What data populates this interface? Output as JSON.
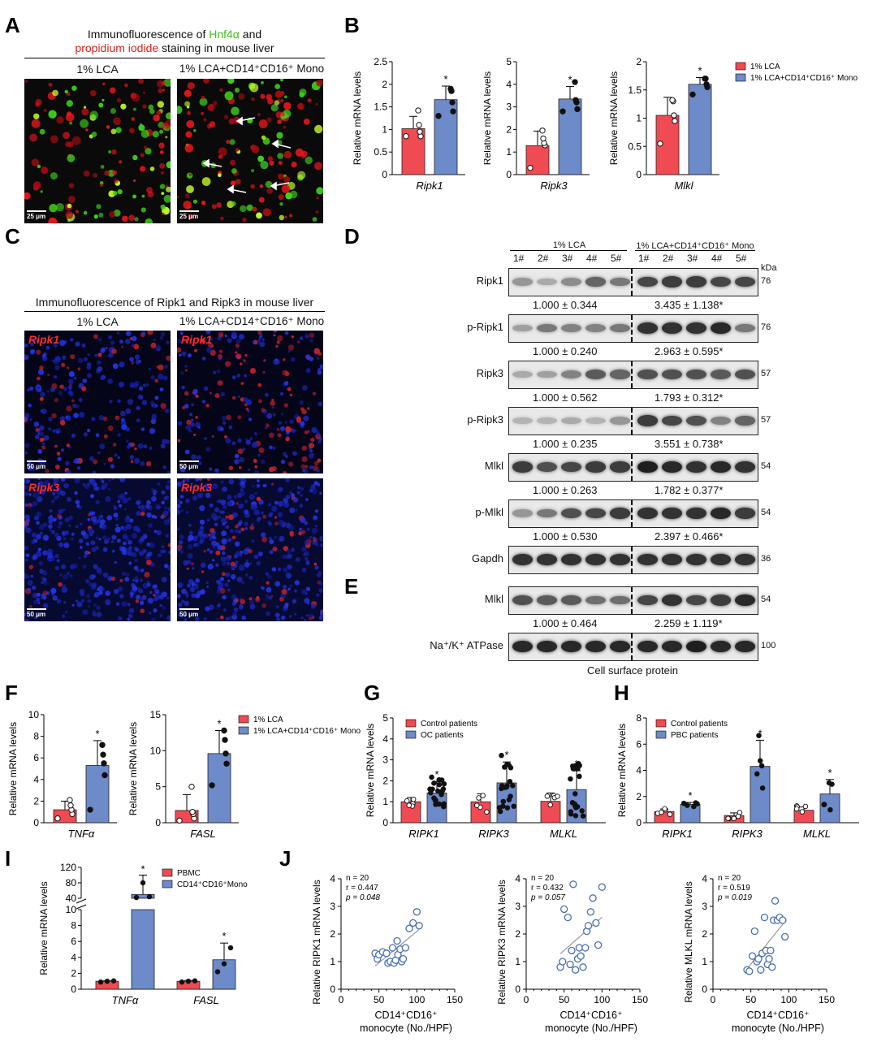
{
  "panel_letters": {
    "A": "A",
    "B": "B",
    "C": "C",
    "D": "D",
    "E": "E",
    "F": "F",
    "G": "G",
    "H": "H",
    "I": "I",
    "J": "J"
  },
  "panelA": {
    "title_pre": "Immunofluorescence of ",
    "title_green": "Hnf4α",
    "title_mid": " and",
    "title_red": "propidium iodide",
    "title_post": " staining in mouse liver",
    "col1": "1% LCA",
    "col2": "1% LCA+CD14⁺CD16⁺ Mono",
    "scale": "25 μm"
  },
  "panelC": {
    "title": "Immunofluorescence of Ripk1 and Ripk3 in mouse liver",
    "col1": "1% LCA",
    "col2": "1% LCA+CD14⁺CD16⁺ Mono",
    "row1": "Ripk1",
    "row2": "Ripk3",
    "scale": "50 μm"
  },
  "panelD": {
    "group1": "1% LCA",
    "group2": "1% LCA+CD14⁺CD16⁺ Mono",
    "lanes": [
      "1#",
      "2#",
      "3#",
      "4#",
      "5#",
      "1#",
      "2#",
      "3#",
      "4#",
      "5#"
    ],
    "kda_header": "kDa",
    "rows": [
      {
        "name": "Ripk1",
        "kda": "76",
        "q1": "1.000 ± 0.344",
        "q2": "3.435 ± 1.138*",
        "intensity": [
          0.35,
          0.25,
          0.4,
          0.6,
          0.5,
          0.75,
          0.8,
          0.8,
          0.75,
          0.75
        ]
      },
      {
        "name": "p-Ripk1",
        "kda": "76",
        "q1": "1.000 ± 0.240",
        "q2": "2.963 ± 0.595*",
        "intensity": [
          0.3,
          0.5,
          0.45,
          0.45,
          0.5,
          0.85,
          0.85,
          0.85,
          0.9,
          0.5
        ]
      },
      {
        "name": "Ripk3",
        "kda": "57",
        "q1": "1.000 ± 0.562",
        "q2": "1.793 ± 0.312*",
        "intensity": [
          0.25,
          0.3,
          0.45,
          0.65,
          0.6,
          0.7,
          0.7,
          0.7,
          0.65,
          0.7
        ]
      },
      {
        "name": "p-Ripk3",
        "kda": "57",
        "q1": "1.000 ± 0.235",
        "q2": "3.551 ± 0.738*",
        "intensity": [
          0.2,
          0.2,
          0.25,
          0.2,
          0.35,
          0.8,
          0.75,
          0.7,
          0.45,
          0.6
        ]
      },
      {
        "name": "Mlkl",
        "kda": "54",
        "q1": "1.000 ± 0.263",
        "q2": "1.782 ± 0.377*",
        "intensity": [
          0.8,
          0.7,
          0.75,
          0.8,
          0.8,
          0.95,
          0.9,
          0.85,
          0.9,
          0.85
        ]
      },
      {
        "name": "p-Mlkl",
        "kda": "54",
        "q1": "1.000 ± 0.530",
        "q2": "2.397 ± 0.466*",
        "intensity": [
          0.35,
          0.5,
          0.7,
          0.75,
          0.8,
          0.85,
          0.85,
          0.85,
          0.9,
          0.8
        ]
      },
      {
        "name": "Gapdh",
        "kda": "36",
        "q1": "",
        "q2": "",
        "intensity": [
          0.85,
          0.85,
          0.85,
          0.85,
          0.85,
          0.85,
          0.85,
          0.85,
          0.85,
          0.85
        ]
      }
    ]
  },
  "panelE": {
    "rows": [
      {
        "name": "Mlkl",
        "kda": "54",
        "q1": "1.000 ± 0.464",
        "q2": "2.259 ± 1.119*",
        "intensity": [
          0.7,
          0.65,
          0.65,
          0.55,
          0.55,
          0.75,
          0.85,
          0.75,
          0.8,
          0.9
        ]
      },
      {
        "name": "Na⁺/K⁺ ATPase",
        "kda": "100",
        "q1": "",
        "q2": "",
        "intensity": [
          0.9,
          0.9,
          0.9,
          0.9,
          0.9,
          0.9,
          0.9,
          0.95,
          0.9,
          0.9
        ]
      }
    ],
    "caption": "Cell surface protein"
  },
  "colors": {
    "red": "#f04a52",
    "blue": "#6d8ac9",
    "scatter": "#4a6fb5"
  },
  "chart_data": [
    {
      "panel": "B",
      "type": "bar",
      "ylabel": "Relative mRNA levels",
      "categories": [
        "1% LCA",
        "1% LCA+CD14⁺CD16⁺ Mono"
      ],
      "xlabel": "Ripk1",
      "values": [
        1.02,
        1.66
      ],
      "errors": [
        0.27,
        0.3
      ],
      "ylim": [
        0,
        2.5
      ],
      "yticks": [
        0,
        0.5,
        1.0,
        1.5,
        2.0,
        2.5
      ],
      "sig": [
        false,
        true
      ],
      "points": [
        [
          0.85,
          0.85,
          0.95,
          1.1,
          1.42
        ],
        [
          1.3,
          1.4,
          1.6,
          1.85,
          1.9
        ]
      ]
    },
    {
      "panel": "B",
      "type": "bar",
      "ylabel": "Relative mRNA levels",
      "categories": [
        "1% LCA",
        "1% LCA+CD14⁺CD16⁺ Mono"
      ],
      "xlabel": "Ripk3",
      "values": [
        1.28,
        3.35
      ],
      "errors": [
        0.65,
        0.55
      ],
      "ylim": [
        0,
        5
      ],
      "yticks": [
        0,
        1,
        2,
        3,
        4,
        5
      ],
      "sig": [
        false,
        true
      ],
      "points": [
        [
          0.3,
          1.3,
          1.4,
          1.6,
          1.95
        ],
        [
          2.8,
          2.9,
          3.2,
          3.3,
          4.1
        ]
      ]
    },
    {
      "panel": "B",
      "type": "bar",
      "ylabel": "Relative mRNA levels",
      "categories": [
        "1% LCA",
        "1% LCA+CD14⁺CD16⁺ Mono"
      ],
      "xlabel": "Mlkl",
      "values": [
        1.05,
        1.6
      ],
      "errors": [
        0.32,
        0.12
      ],
      "ylim": [
        0,
        2.0
      ],
      "yticks": [
        0,
        0.5,
        1.0,
        1.5,
        2.0
      ],
      "sig": [
        false,
        true
      ],
      "points": [
        [
          0.55,
          0.95,
          1.05,
          1.3,
          1.32
        ],
        [
          1.42,
          1.55,
          1.6,
          1.7,
          1.7
        ]
      ],
      "legend": [
        "1% LCA",
        "1% LCA+CD14⁺CD16⁺ Mono"
      ]
    },
    {
      "panel": "F",
      "type": "bar",
      "ylabel": "Relative mRNA levels",
      "categories": [
        "1% LCA",
        "1% LCA+CD14⁺CD16⁺ Mono"
      ],
      "xlabel": "TNFα",
      "values": [
        1.2,
        5.3
      ],
      "errors": [
        0.8,
        2.3
      ],
      "ylim": [
        0,
        10
      ],
      "yticks": [
        0,
        2,
        4,
        6,
        8,
        10
      ],
      "sig": [
        false,
        true
      ],
      "points": [
        [
          0.4,
          0.8,
          1.2,
          1.6,
          2.1
        ],
        [
          1.2,
          4.4,
          5.5,
          6.3,
          7.2
        ]
      ]
    },
    {
      "panel": "F",
      "type": "bar",
      "ylabel": "Relative mRNA levels",
      "categories": [
        "1% LCA",
        "1% LCA+CD14⁺CD16⁺ Mono"
      ],
      "xlabel": "FASL",
      "values": [
        1.7,
        9.6
      ],
      "errors": [
        2.2,
        3.2
      ],
      "ylim": [
        0,
        15
      ],
      "yticks": [
        0,
        5,
        10,
        15
      ],
      "sig": [
        false,
        true
      ],
      "points": [
        [
          0.3,
          0.6,
          1.2,
          1.5,
          5.0
        ],
        [
          5.2,
          8.2,
          9.6,
          11.5,
          12.8
        ]
      ],
      "legend": [
        "1% LCA",
        "1% LCA+CD14⁺CD16⁺ Mono"
      ]
    },
    {
      "panel": "G",
      "type": "bar",
      "ylabel": "Relative mRNA levels",
      "categories": [
        "RIPK1",
        "RIPK3",
        "MLKL"
      ],
      "series": [
        {
          "name": "Control patients",
          "values": [
            1.0,
            1.0,
            1.02
          ],
          "errors": [
            0.2,
            0.38,
            0.4
          ]
        },
        {
          "name": "OC patients",
          "values": [
            1.42,
            1.9,
            1.58
          ],
          "errors": [
            0.55,
            1.0,
            0.9
          ]
        }
      ],
      "ylim": [
        0,
        5
      ],
      "yticks": [
        0,
        1,
        2,
        3,
        4,
        5
      ],
      "sig": [
        false,
        true,
        false,
        true,
        false,
        true
      ]
    },
    {
      "panel": "H",
      "type": "bar",
      "ylabel": "Relative mRNA levels",
      "categories": [
        "RIPK1",
        "RIPK3",
        "MLKL"
      ],
      "series": [
        {
          "name": "Control patients",
          "values": [
            0.85,
            0.55,
            0.95
          ],
          "errors": [
            0.2,
            0.2,
            0.25
          ]
        },
        {
          "name": "PBC patients",
          "values": [
            1.4,
            4.3,
            2.2
          ],
          "errors": [
            0.15,
            2.0,
            1.1
          ]
        }
      ],
      "ylim": [
        0,
        8
      ],
      "yticks": [
        0,
        2,
        4,
        6,
        8
      ],
      "sig": [
        false,
        true,
        false,
        true,
        false,
        true
      ]
    },
    {
      "panel": "I",
      "type": "bar",
      "ylabel": "Relative mRNA levels",
      "categories": [
        "TNFα",
        "FASL"
      ],
      "series": [
        {
          "name": "PBMC",
          "values": [
            1.0,
            1.0
          ],
          "errors": [
            0.05,
            0.1
          ]
        },
        {
          "name": "CD14⁺CD16⁺Mono",
          "values": [
            50,
            3.7
          ],
          "errors": [
            50,
            2.1
          ]
        }
      ],
      "yticks_lower": [
        0,
        2,
        4,
        6,
        8,
        10
      ],
      "yticks_upper": [
        40,
        80,
        120
      ],
      "sig": [
        false,
        true,
        false,
        true
      ]
    },
    {
      "panel": "J",
      "type": "scatter",
      "xlabel": "CD14⁺CD16⁺ monocyte (No./HPF)",
      "ylabel": "Relative RIPK1 mRNA levels",
      "gene": "RIPK1",
      "n": "n = 20",
      "r": "r = 0.447",
      "p": "p = 0.048",
      "xlim": [
        0,
        150
      ],
      "ylim": [
        0,
        4
      ],
      "x": [
        45,
        48,
        50,
        55,
        60,
        62,
        65,
        68,
        70,
        72,
        74,
        75,
        78,
        80,
        82,
        85,
        90,
        95,
        100,
        103
      ],
      "y": [
        1.3,
        1.1,
        1.25,
        1.35,
        1.3,
        0.95,
        1.0,
        1.5,
        0.95,
        1.05,
        1.75,
        1.25,
        1.45,
        1.0,
        1.1,
        1.5,
        2.2,
        2.4,
        2.8,
        2.3
      ]
    },
    {
      "panel": "J",
      "type": "scatter",
      "xlabel": "CD14⁺CD16⁺ monocyte (No./HPF)",
      "ylabel": "Relative RIPK3 mRNA levels",
      "gene": "RIPK3",
      "n": "n = 20",
      "r": "r = 0.432",
      "p": "p = 0.057",
      "xlim": [
        0,
        150
      ],
      "ylim": [
        0,
        4
      ],
      "x": [
        45,
        48,
        50,
        55,
        58,
        60,
        62,
        65,
        68,
        70,
        72,
        75,
        78,
        80,
        82,
        85,
        88,
        92,
        95,
        100
      ],
      "y": [
        0.8,
        1.0,
        2.9,
        2.6,
        0.9,
        1.4,
        3.8,
        0.7,
        1.1,
        1.5,
        1.2,
        0.8,
        1.5,
        2.1,
        2.3,
        2.8,
        3.3,
        2.4,
        1.6,
        3.7
      ]
    },
    {
      "panel": "J",
      "type": "scatter",
      "xlabel": "CD14⁺CD16⁺ monocyte (No./HPF)",
      "ylabel": "Relative MLKL mRNA levels",
      "gene": "MLKL",
      "n": "n = 20",
      "r": "r = 0.519",
      "p": "p = 0.019",
      "xlim": [
        0,
        150
      ],
      "ylim": [
        0,
        4
      ],
      "x": [
        45,
        48,
        52,
        55,
        58,
        60,
        63,
        65,
        68,
        70,
        72,
        74,
        76,
        78,
        80,
        82,
        85,
        88,
        92,
        95
      ],
      "y": [
        0.7,
        0.65,
        1.2,
        2.1,
        1.0,
        1.1,
        0.7,
        1.3,
        2.6,
        1.4,
        0.9,
        1.1,
        1.4,
        0.8,
        2.5,
        3.2,
        2.5,
        2.6,
        2.5,
        1.9
      ]
    }
  ]
}
